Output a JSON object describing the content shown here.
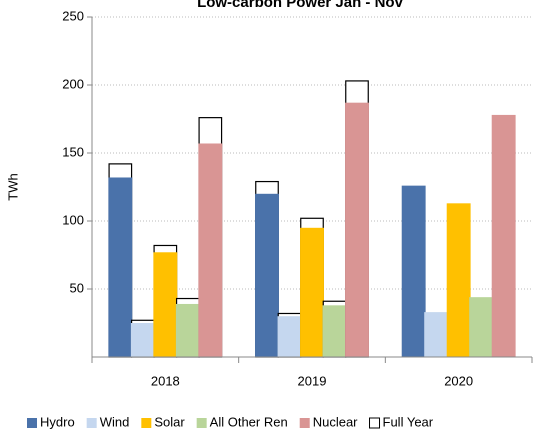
{
  "chart_data": {
    "type": "bar",
    "title": "Low-carbon Power Jan - Nov",
    "ylabel": "TWh",
    "categories": [
      "2018",
      "2019",
      "2020"
    ],
    "series": [
      {
        "name": "Hydro",
        "color": "#4a72aa",
        "values": [
          132,
          120,
          126
        ]
      },
      {
        "name": "Wind",
        "color": "#c5d7ef",
        "values": [
          25,
          30,
          33
        ]
      },
      {
        "name": "Solar",
        "color": "#ffc000",
        "values": [
          77,
          95,
          113
        ]
      },
      {
        "name": "All Other Ren",
        "color": "#b9d59a",
        "values": [
          39,
          38,
          44
        ]
      },
      {
        "name": "Nuclear",
        "color": "#d99594",
        "values": [
          157,
          187,
          178
        ]
      }
    ],
    "full_year": {
      "name": "Full Year",
      "color": "#ffffff",
      "edge": "#000000",
      "values": [
        [
          142,
          129,
          null
        ],
        [
          27,
          32,
          null
        ],
        [
          82,
          102,
          null
        ],
        [
          43,
          41,
          null
        ],
        [
          176,
          203,
          null
        ]
      ]
    },
    "ylim": [
      0,
      250
    ],
    "yticks": [
      50,
      100,
      150,
      200,
      250
    ],
    "grid": true,
    "legend": "bottom"
  }
}
